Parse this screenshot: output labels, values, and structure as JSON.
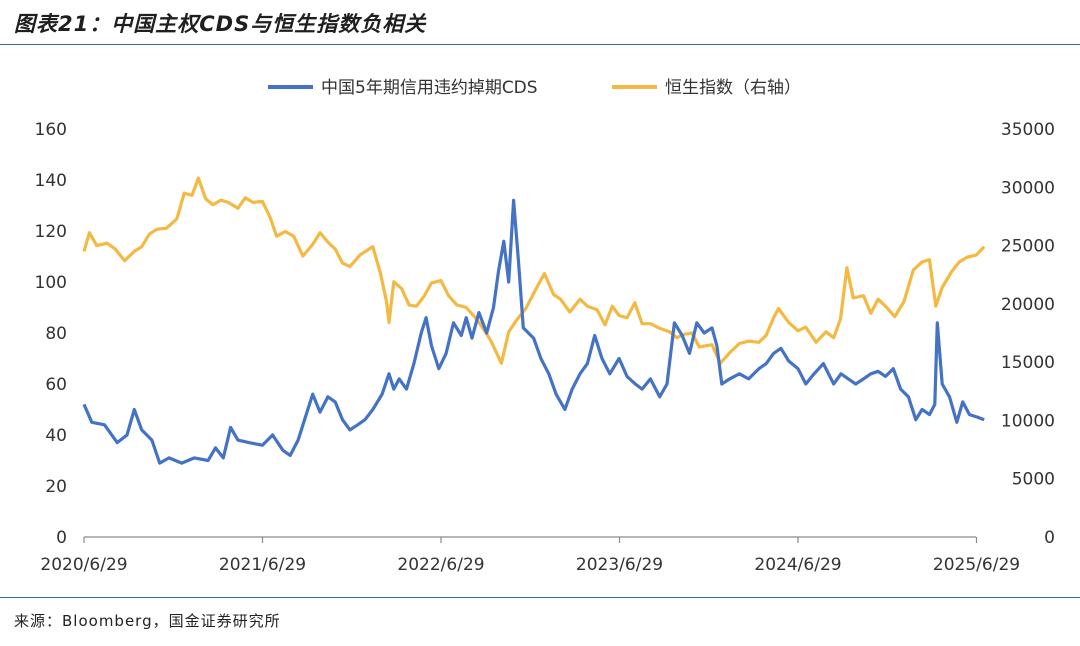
{
  "header": {
    "title": "图表21：中国主权CDS与恒生指数负相关"
  },
  "footer": {
    "source": "来源：Bloomberg，国金证券研究所"
  },
  "chart_data": {
    "type": "line",
    "title": "图表21：中国主权CDS与恒生指数负相关",
    "x_tick_labels": [
      "2020/6/29",
      "2021/6/29",
      "2022/6/29",
      "2023/6/29",
      "2024/6/29",
      "2025/6/29"
    ],
    "x_range": [
      "2020-06-29",
      "2025-07-15"
    ],
    "y_left": {
      "ticks": [
        0,
        20,
        40,
        60,
        80,
        100,
        120,
        140,
        160
      ],
      "range": [
        0,
        160
      ]
    },
    "y_right": {
      "ticks": [
        0,
        5000,
        10000,
        15000,
        20000,
        25000,
        30000,
        35000
      ],
      "range": [
        0,
        35000
      ]
    },
    "grid": false,
    "legend": "top-center",
    "colors": {
      "cds": "#4472c4",
      "hsi": "#f4b942",
      "axis": "#8a8a8a",
      "rule": "#2f6d9a"
    },
    "series": [
      {
        "name": "中国5年期信用违约掉期CDS",
        "axis": "left",
        "points": [
          [
            "2020-06-29",
            52
          ],
          [
            "2020-07-15",
            45
          ],
          [
            "2020-08-10",
            44
          ],
          [
            "2020-09-05",
            37
          ],
          [
            "2020-09-25",
            40
          ],
          [
            "2020-10-10",
            50
          ],
          [
            "2020-10-25",
            42
          ],
          [
            "2020-11-15",
            38
          ],
          [
            "2020-12-01",
            29
          ],
          [
            "2020-12-20",
            31
          ],
          [
            "2021-01-15",
            29
          ],
          [
            "2021-02-10",
            31
          ],
          [
            "2021-03-10",
            30
          ],
          [
            "2021-03-25",
            35
          ],
          [
            "2021-04-10",
            31
          ],
          [
            "2021-04-25",
            43
          ],
          [
            "2021-05-10",
            38
          ],
          [
            "2021-06-01",
            37
          ],
          [
            "2021-06-29",
            36
          ],
          [
            "2021-07-20",
            40
          ],
          [
            "2021-08-10",
            34
          ],
          [
            "2021-08-25",
            32
          ],
          [
            "2021-09-10",
            38
          ],
          [
            "2021-09-25",
            47
          ],
          [
            "2021-10-10",
            56
          ],
          [
            "2021-10-25",
            49
          ],
          [
            "2021-11-10",
            55
          ],
          [
            "2021-11-25",
            53
          ],
          [
            "2021-12-10",
            46
          ],
          [
            "2021-12-25",
            42
          ],
          [
            "2022-01-10",
            44
          ],
          [
            "2022-01-25",
            46
          ],
          [
            "2022-02-10",
            50
          ],
          [
            "2022-03-01",
            56
          ],
          [
            "2022-03-15",
            64
          ],
          [
            "2022-03-25",
            58
          ],
          [
            "2022-04-05",
            62
          ],
          [
            "2022-04-20",
            58
          ],
          [
            "2022-05-05",
            68
          ],
          [
            "2022-05-20",
            80
          ],
          [
            "2022-05-30",
            86
          ],
          [
            "2022-06-10",
            75
          ],
          [
            "2022-06-25",
            66
          ],
          [
            "2022-07-10",
            72
          ],
          [
            "2022-07-25",
            84
          ],
          [
            "2022-08-10",
            79
          ],
          [
            "2022-08-20",
            86
          ],
          [
            "2022-09-01",
            78
          ],
          [
            "2022-09-15",
            88
          ],
          [
            "2022-10-01",
            80
          ],
          [
            "2022-10-15",
            90
          ],
          [
            "2022-10-25",
            104
          ],
          [
            "2022-11-05",
            116
          ],
          [
            "2022-11-15",
            100
          ],
          [
            "2022-11-25",
            132
          ],
          [
            "2022-12-05",
            108
          ],
          [
            "2022-12-15",
            82
          ],
          [
            "2023-01-05",
            78
          ],
          [
            "2023-01-20",
            70
          ],
          [
            "2023-02-05",
            64
          ],
          [
            "2023-02-20",
            56
          ],
          [
            "2023-03-10",
            50
          ],
          [
            "2023-03-25",
            58
          ],
          [
            "2023-04-10",
            64
          ],
          [
            "2023-04-25",
            68
          ],
          [
            "2023-05-10",
            79
          ],
          [
            "2023-05-25",
            70
          ],
          [
            "2023-06-10",
            64
          ],
          [
            "2023-06-29",
            70
          ],
          [
            "2023-07-15",
            63
          ],
          [
            "2023-08-01",
            60
          ],
          [
            "2023-08-15",
            58
          ],
          [
            "2023-09-01",
            62
          ],
          [
            "2023-09-20",
            55
          ],
          [
            "2023-10-05",
            60
          ],
          [
            "2023-10-20",
            84
          ],
          [
            "2023-11-05",
            79
          ],
          [
            "2023-11-20",
            72
          ],
          [
            "2023-12-05",
            84
          ],
          [
            "2023-12-20",
            80
          ],
          [
            "2024-01-05",
            82
          ],
          [
            "2024-01-15",
            75
          ],
          [
            "2024-01-25",
            60
          ],
          [
            "2024-02-10",
            62
          ],
          [
            "2024-03-01",
            64
          ],
          [
            "2024-03-20",
            62
          ],
          [
            "2024-04-10",
            66
          ],
          [
            "2024-04-25",
            68
          ],
          [
            "2024-05-10",
            72
          ],
          [
            "2024-05-25",
            74
          ],
          [
            "2024-06-10",
            69
          ],
          [
            "2024-06-29",
            66
          ],
          [
            "2024-07-15",
            60
          ],
          [
            "2024-08-01",
            64
          ],
          [
            "2024-08-20",
            68
          ],
          [
            "2024-09-10",
            60
          ],
          [
            "2024-09-25",
            64
          ],
          [
            "2024-10-10",
            62
          ],
          [
            "2024-10-25",
            60
          ],
          [
            "2024-11-10",
            62
          ],
          [
            "2024-11-25",
            64
          ],
          [
            "2024-12-10",
            65
          ],
          [
            "2024-12-25",
            63
          ],
          [
            "2025-01-10",
            66
          ],
          [
            "2025-01-25",
            58
          ],
          [
            "2025-02-10",
            55
          ],
          [
            "2025-02-25",
            46
          ],
          [
            "2025-03-10",
            50
          ],
          [
            "2025-03-25",
            48
          ],
          [
            "2025-04-05",
            52
          ],
          [
            "2025-04-10",
            84
          ],
          [
            "2025-04-20",
            60
          ],
          [
            "2025-05-05",
            55
          ],
          [
            "2025-05-20",
            45
          ],
          [
            "2025-06-01",
            53
          ],
          [
            "2025-06-15",
            48
          ],
          [
            "2025-07-01",
            47
          ],
          [
            "2025-07-15",
            46
          ]
        ]
      },
      {
        "name": "恒生指数（右轴）",
        "axis": "right",
        "points": [
          [
            "2020-06-29",
            24500
          ],
          [
            "2020-07-10",
            26100
          ],
          [
            "2020-07-25",
            25000
          ],
          [
            "2020-08-15",
            25200
          ],
          [
            "2020-09-01",
            24700
          ],
          [
            "2020-09-20",
            23700
          ],
          [
            "2020-10-10",
            24500
          ],
          [
            "2020-10-25",
            24900
          ],
          [
            "2020-11-10",
            26000
          ],
          [
            "2020-11-25",
            26400
          ],
          [
            "2020-12-15",
            26500
          ],
          [
            "2021-01-05",
            27300
          ],
          [
            "2021-01-20",
            29500
          ],
          [
            "2021-02-05",
            29300
          ],
          [
            "2021-02-18",
            30800
          ],
          [
            "2021-03-05",
            29000
          ],
          [
            "2021-03-20",
            28500
          ],
          [
            "2021-04-05",
            28900
          ],
          [
            "2021-04-20",
            28700
          ],
          [
            "2021-05-10",
            28200
          ],
          [
            "2021-05-25",
            29100
          ],
          [
            "2021-06-10",
            28700
          ],
          [
            "2021-06-29",
            28800
          ],
          [
            "2021-07-15",
            27400
          ],
          [
            "2021-07-28",
            25800
          ],
          [
            "2021-08-15",
            26200
          ],
          [
            "2021-09-01",
            25800
          ],
          [
            "2021-09-20",
            24100
          ],
          [
            "2021-10-10",
            25100
          ],
          [
            "2021-10-25",
            26100
          ],
          [
            "2021-11-10",
            25300
          ],
          [
            "2021-11-25",
            24700
          ],
          [
            "2021-12-10",
            23500
          ],
          [
            "2021-12-25",
            23200
          ],
          [
            "2022-01-15",
            24200
          ],
          [
            "2022-02-10",
            24900
          ],
          [
            "2022-02-25",
            22700
          ],
          [
            "2022-03-10",
            20200
          ],
          [
            "2022-03-15",
            18400
          ],
          [
            "2022-03-25",
            21900
          ],
          [
            "2022-04-10",
            21300
          ],
          [
            "2022-04-25",
            19900
          ],
          [
            "2022-05-10",
            19800
          ],
          [
            "2022-05-25",
            20600
          ],
          [
            "2022-06-10",
            21800
          ],
          [
            "2022-06-29",
            22000
          ],
          [
            "2022-07-15",
            20700
          ],
          [
            "2022-08-01",
            19900
          ],
          [
            "2022-08-20",
            19700
          ],
          [
            "2022-09-10",
            18700
          ],
          [
            "2022-09-25",
            17800
          ],
          [
            "2022-10-10",
            16800
          ],
          [
            "2022-10-31",
            14900
          ],
          [
            "2022-11-15",
            17600
          ],
          [
            "2022-12-01",
            18600
          ],
          [
            "2022-12-20",
            19600
          ],
          [
            "2023-01-10",
            21300
          ],
          [
            "2023-01-27",
            22600
          ],
          [
            "2023-02-15",
            20800
          ],
          [
            "2023-03-01",
            20400
          ],
          [
            "2023-03-20",
            19300
          ],
          [
            "2023-04-10",
            20400
          ],
          [
            "2023-04-25",
            19800
          ],
          [
            "2023-05-15",
            19500
          ],
          [
            "2023-05-31",
            18200
          ],
          [
            "2023-06-15",
            19800
          ],
          [
            "2023-06-29",
            19000
          ],
          [
            "2023-07-15",
            18800
          ],
          [
            "2023-07-31",
            20100
          ],
          [
            "2023-08-15",
            18300
          ],
          [
            "2023-09-01",
            18300
          ],
          [
            "2023-09-20",
            17900
          ],
          [
            "2023-10-10",
            17600
          ],
          [
            "2023-10-25",
            17100
          ],
          [
            "2023-11-10",
            17400
          ],
          [
            "2023-11-25",
            17500
          ],
          [
            "2023-12-10",
            16300
          ],
          [
            "2024-01-05",
            16500
          ],
          [
            "2024-01-22",
            14900
          ],
          [
            "2024-02-10",
            15800
          ],
          [
            "2024-03-01",
            16600
          ],
          [
            "2024-03-20",
            16800
          ],
          [
            "2024-04-10",
            16700
          ],
          [
            "2024-04-25",
            17300
          ],
          [
            "2024-05-10",
            18800
          ],
          [
            "2024-05-20",
            19600
          ],
          [
            "2024-06-10",
            18400
          ],
          [
            "2024-06-29",
            17700
          ],
          [
            "2024-07-15",
            18000
          ],
          [
            "2024-08-05",
            16700
          ],
          [
            "2024-08-25",
            17600
          ],
          [
            "2024-09-10",
            17100
          ],
          [
            "2024-09-24",
            18700
          ],
          [
            "2024-10-07",
            23100
          ],
          [
            "2024-10-20",
            20500
          ],
          [
            "2024-11-10",
            20700
          ],
          [
            "2024-11-25",
            19200
          ],
          [
            "2024-12-10",
            20400
          ],
          [
            "2024-12-25",
            19800
          ],
          [
            "2025-01-13",
            18900
          ],
          [
            "2025-02-01",
            20200
          ],
          [
            "2025-02-20",
            22900
          ],
          [
            "2025-03-10",
            23600
          ],
          [
            "2025-03-25",
            23800
          ],
          [
            "2025-04-07",
            19800
          ],
          [
            "2025-04-20",
            21400
          ],
          [
            "2025-05-10",
            22800
          ],
          [
            "2025-05-25",
            23600
          ],
          [
            "2025-06-10",
            24000
          ],
          [
            "2025-06-29",
            24200
          ],
          [
            "2025-07-15",
            24900
          ]
        ]
      }
    ]
  }
}
